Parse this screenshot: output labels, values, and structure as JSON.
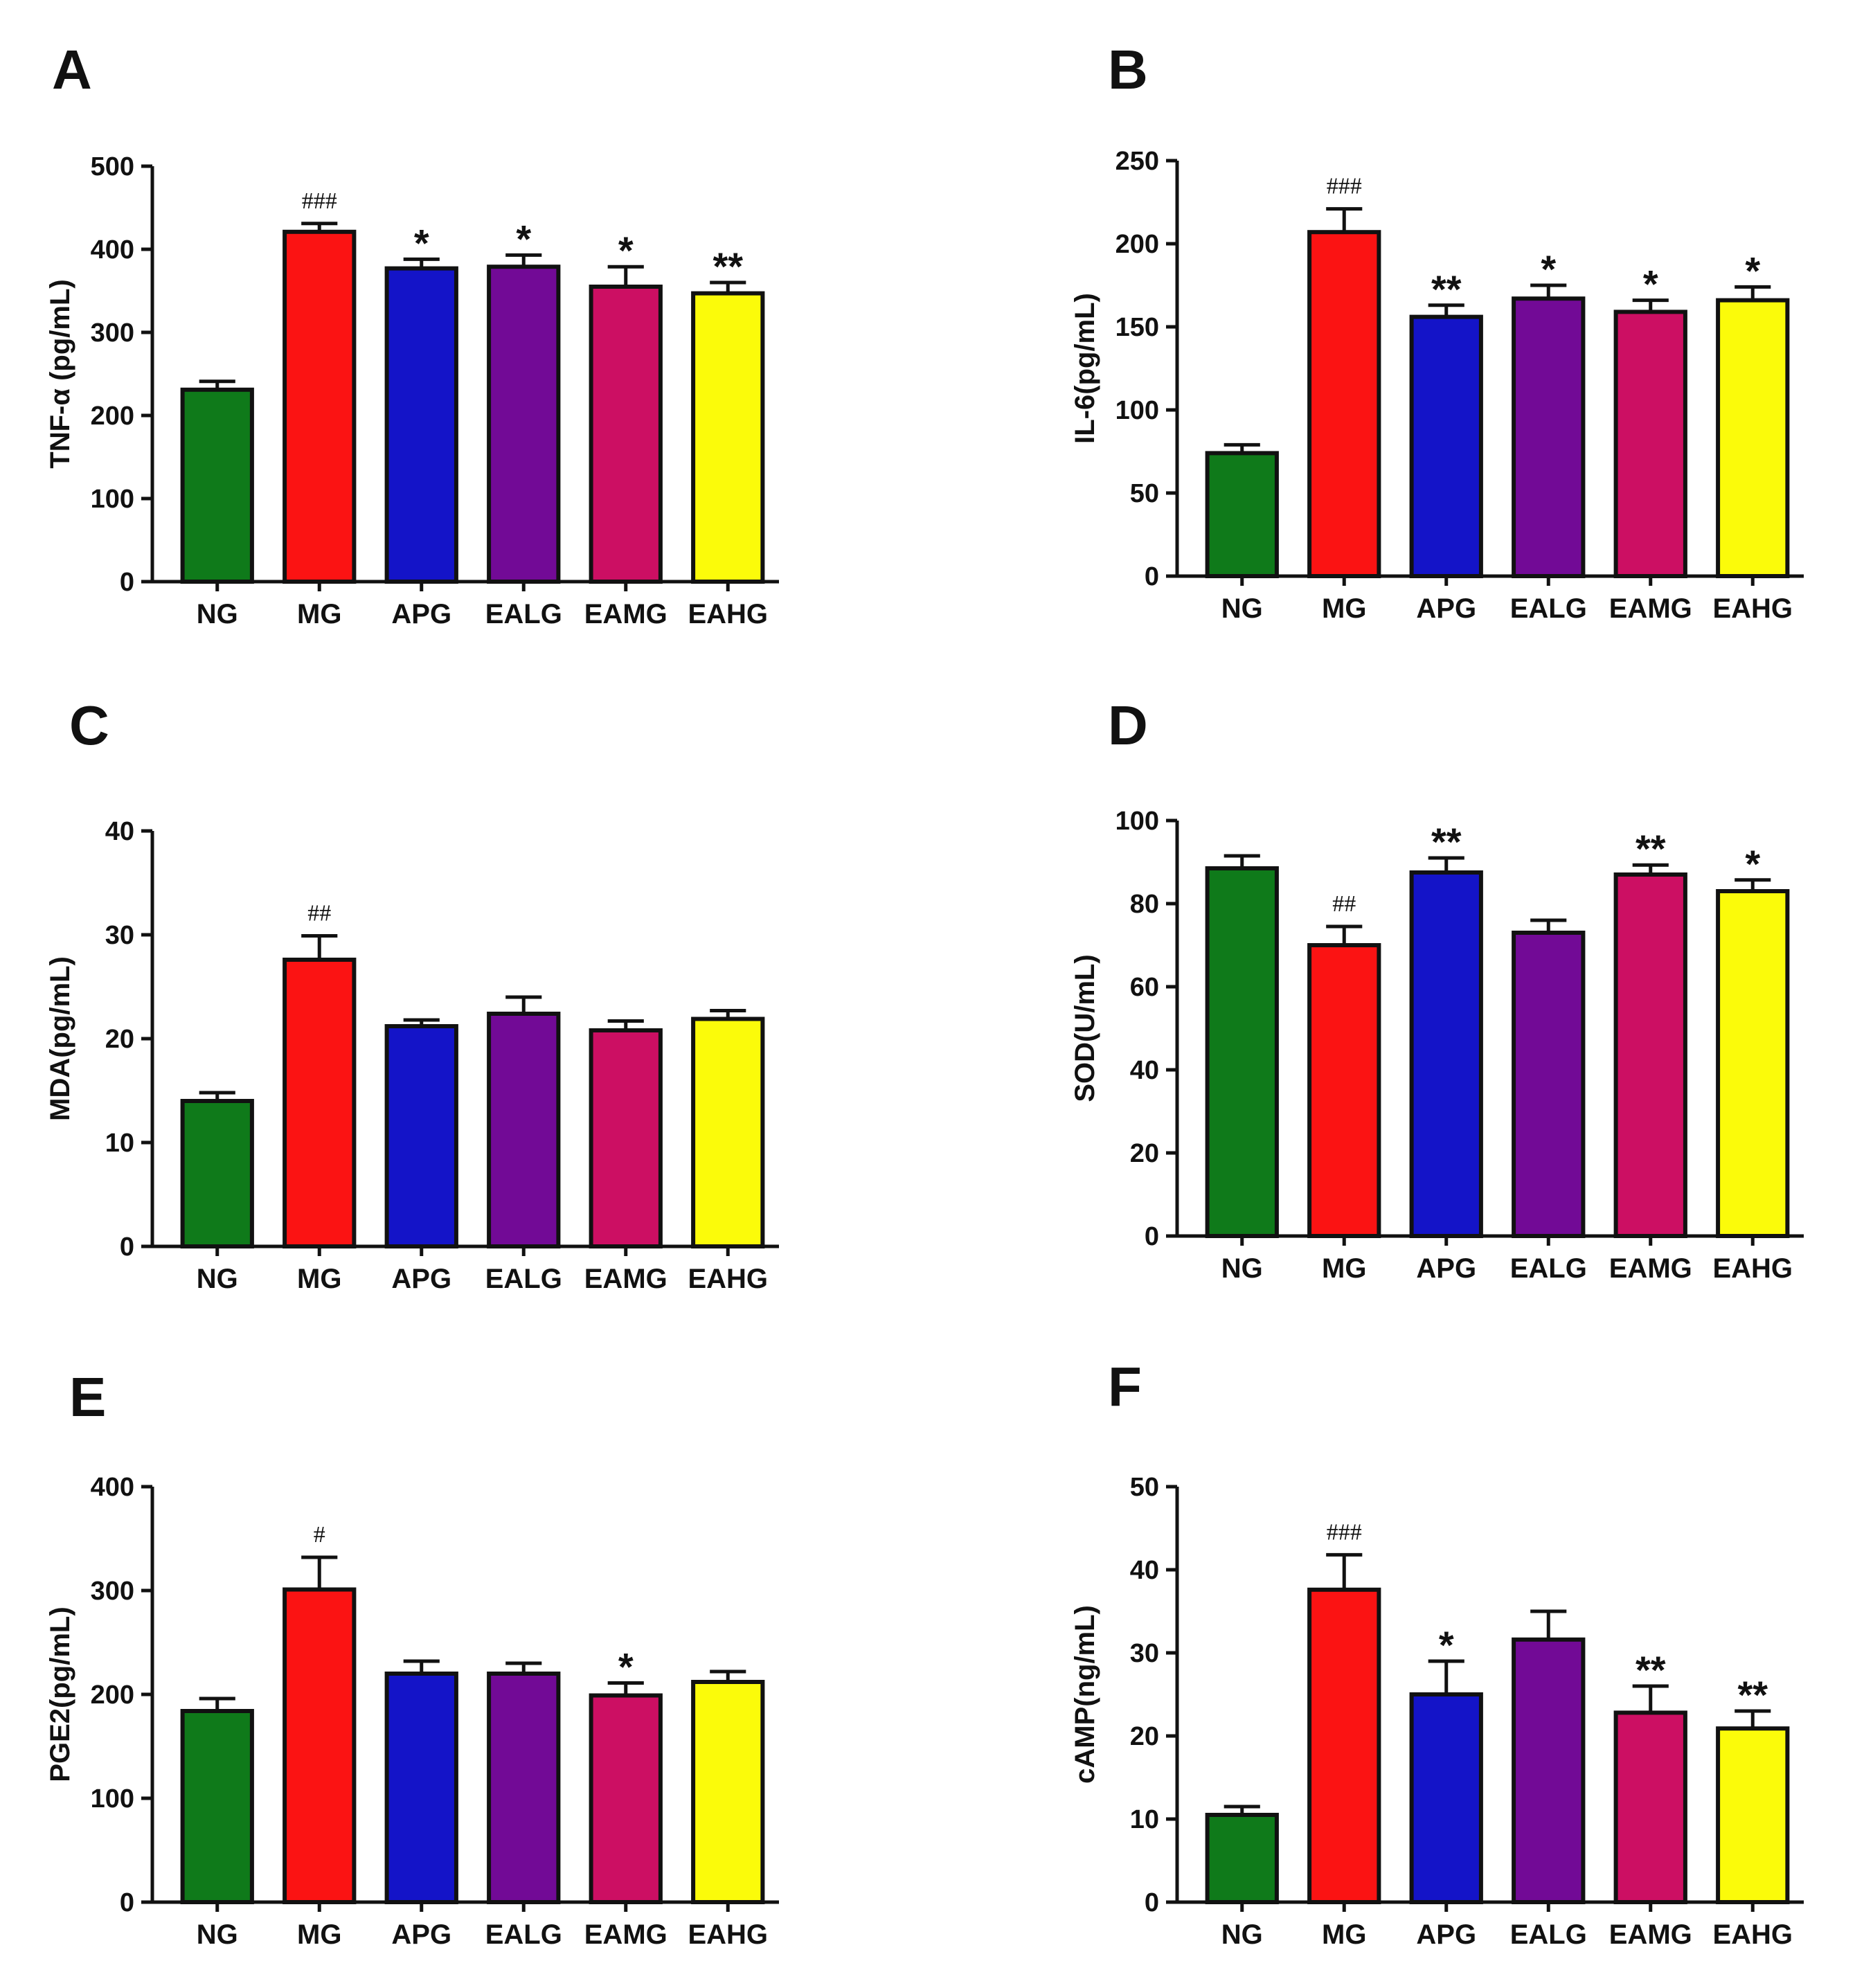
{
  "colors": {
    "NG": "#0f7a1a",
    "MG": "#fb1313",
    "APG": "#1414c8",
    "EALG": "#720a96",
    "EAMG": "#cc0f63",
    "EAHG": "#fbfb0a",
    "axis": "#111111"
  },
  "chart_data": [
    {
      "panel": "A",
      "type": "bar",
      "ylabel": "TNF-α (pg/mL)",
      "ylim": [
        0,
        500
      ],
      "yticks": [
        0,
        100,
        200,
        300,
        400,
        500
      ],
      "categories": [
        "NG",
        "MG",
        "APG",
        "EALG",
        "EAMG",
        "EAHG"
      ],
      "values": [
        231,
        421,
        377,
        379,
        355,
        347
      ],
      "errors": [
        10,
        10,
        11,
        14,
        24,
        13
      ],
      "annotations": [
        "",
        "###",
        "*",
        "*",
        "*",
        "**"
      ]
    },
    {
      "panel": "B",
      "type": "bar",
      "ylabel": "IL-6(pg/mL)",
      "ylim": [
        0,
        250
      ],
      "yticks": [
        0,
        50,
        100,
        150,
        200,
        250
      ],
      "categories": [
        "NG",
        "MG",
        "APG",
        "EALG",
        "EAMG",
        "EAHG"
      ],
      "values": [
        74,
        207,
        156,
        167,
        159,
        166
      ],
      "errors": [
        5,
        14,
        7,
        8,
        7,
        8
      ],
      "annotations": [
        "",
        "###",
        "**",
        "*",
        "*",
        "*"
      ]
    },
    {
      "panel": "C",
      "type": "bar",
      "ylabel": "MDA(pg/mL)",
      "ylim": [
        0,
        40
      ],
      "yticks": [
        0,
        10,
        20,
        30,
        40
      ],
      "categories": [
        "NG",
        "MG",
        "APG",
        "EALG",
        "EAMG",
        "EAHG"
      ],
      "values": [
        14,
        27.6,
        21.2,
        22.4,
        20.8,
        21.9
      ],
      "errors": [
        0.8,
        2.3,
        0.6,
        1.6,
        0.9,
        0.8
      ],
      "annotations": [
        "",
        "##",
        "",
        "",
        "",
        ""
      ]
    },
    {
      "panel": "D",
      "type": "bar",
      "ylabel": "SOD(U/mL)",
      "ylim": [
        0,
        100
      ],
      "yticks": [
        0,
        20,
        40,
        60,
        80,
        100
      ],
      "categories": [
        "NG",
        "MG",
        "APG",
        "EALG",
        "EAMG",
        "EAHG"
      ],
      "values": [
        88.5,
        70,
        87.5,
        73,
        87,
        83
      ],
      "errors": [
        3,
        4.5,
        3.5,
        3,
        2.3,
        2.7
      ],
      "annotations": [
        "",
        "##",
        "**",
        "",
        "**",
        "*"
      ]
    },
    {
      "panel": "E",
      "type": "bar",
      "ylabel": "PGE2(pg/mL)",
      "ylim": [
        0,
        400
      ],
      "yticks": [
        0,
        100,
        200,
        300,
        400
      ],
      "categories": [
        "NG",
        "MG",
        "APG",
        "EALG",
        "EAMG",
        "EAHG"
      ],
      "values": [
        184,
        301,
        220,
        220,
        199,
        212
      ],
      "errors": [
        12,
        31,
        12,
        10,
        12,
        10
      ],
      "annotations": [
        "",
        "#",
        "",
        "",
        "*",
        ""
      ]
    },
    {
      "panel": "F",
      "type": "bar",
      "ylabel": "cAMP(ng/mL)",
      "ylim": [
        0,
        50
      ],
      "yticks": [
        0,
        10,
        20,
        30,
        40,
        50
      ],
      "categories": [
        "NG",
        "MG",
        "APG",
        "EALG",
        "EAMG",
        "EAHG"
      ],
      "values": [
        10.5,
        37.6,
        25,
        31.6,
        22.8,
        20.9
      ],
      "errors": [
        1,
        4.2,
        4,
        3.4,
        3.2,
        2.1
      ],
      "annotations": [
        "",
        "###",
        "*",
        "",
        "**",
        "**"
      ]
    }
  ]
}
